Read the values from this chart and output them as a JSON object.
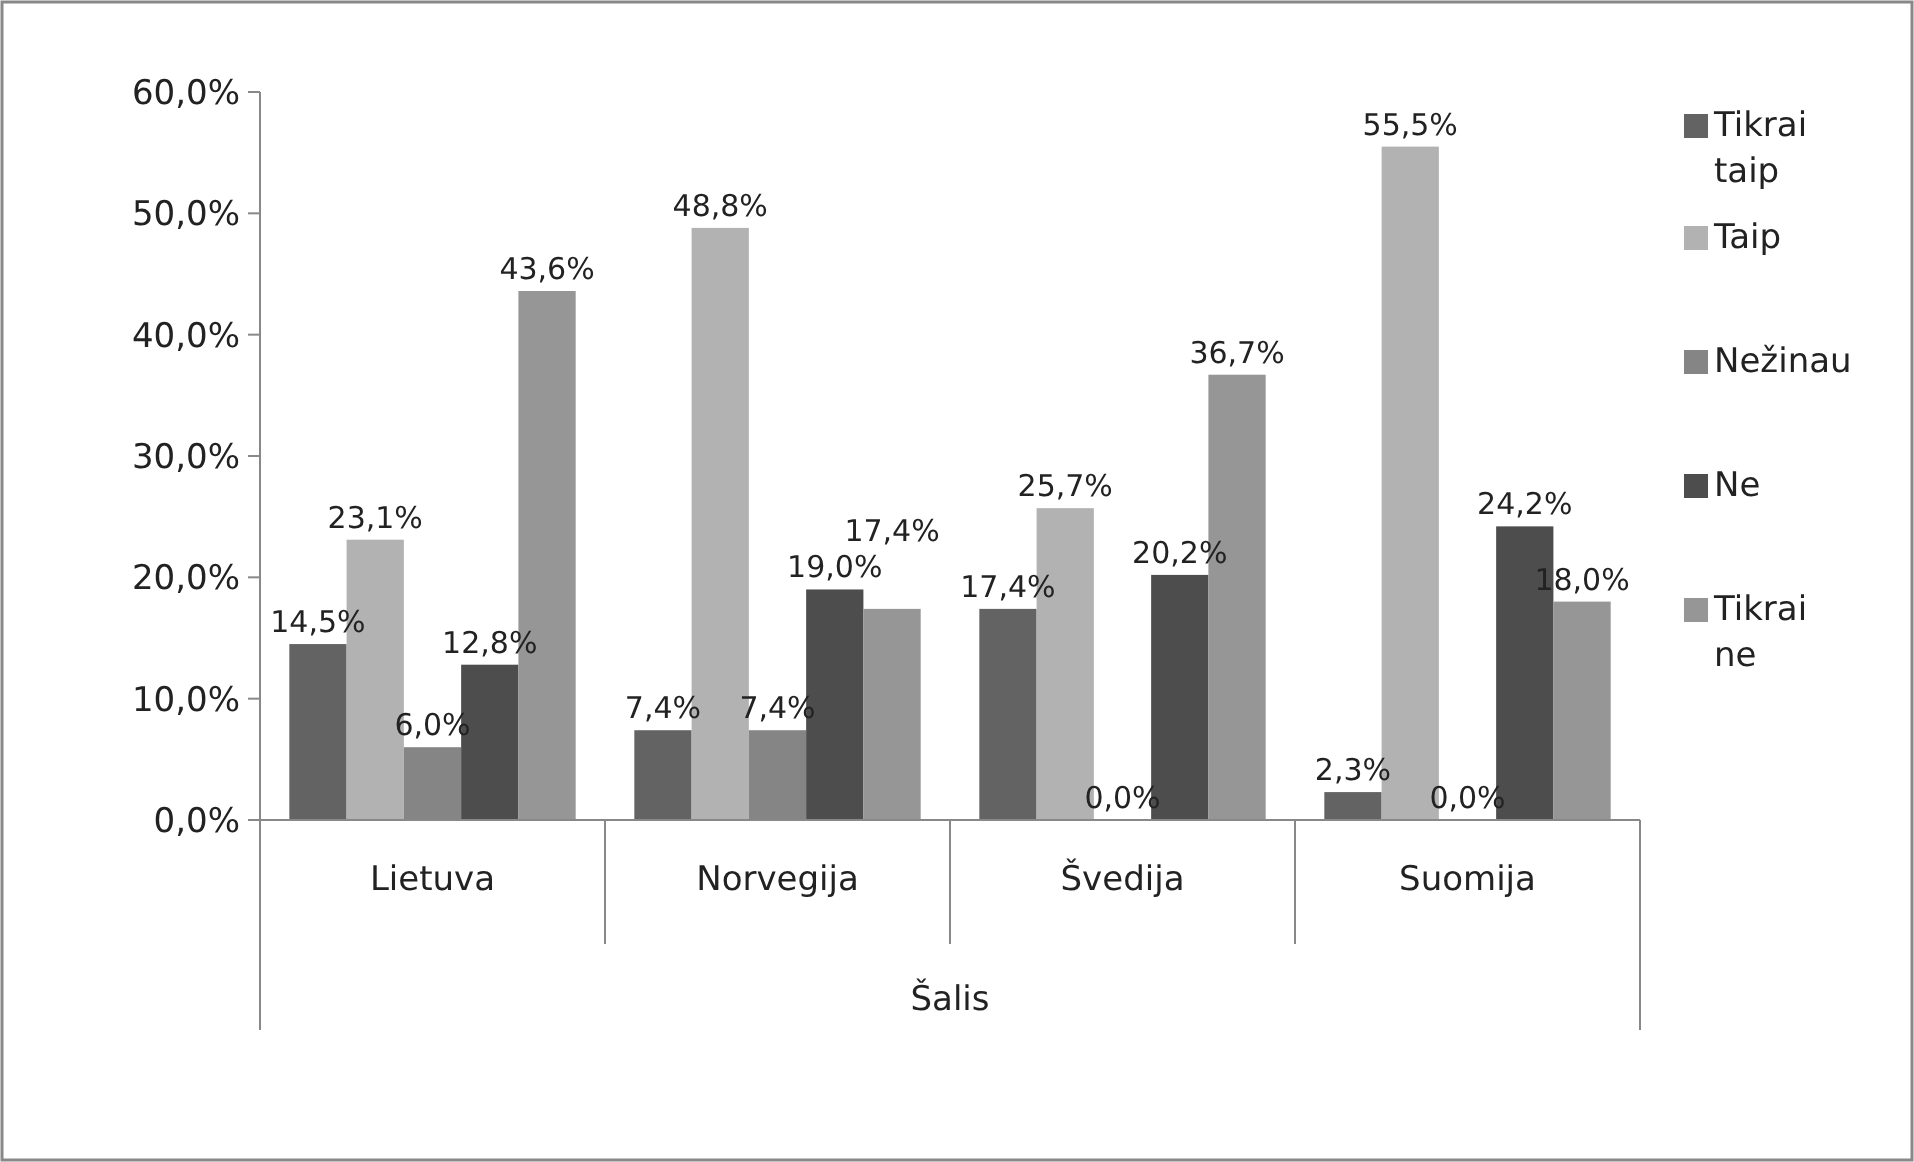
{
  "chart_data": {
    "type": "bar",
    "xlabel": "Šalis",
    "categories": [
      "Lietuva",
      "Norvegija",
      "Švedija",
      "Suomija"
    ],
    "series": [
      {
        "name": "Tikrai taip",
        "color": "#636363",
        "values": [
          14.5,
          7.4,
          17.4,
          2.3
        ],
        "value_labels": [
          "14,5%",
          "7,4%",
          "17,4%",
          "2,3%"
        ]
      },
      {
        "name": "Taip",
        "color": "#b2b2b2",
        "values": [
          23.1,
          48.8,
          25.7,
          55.5
        ],
        "value_labels": [
          "23,1%",
          "48,8%",
          "25,7%",
          "55,5%"
        ]
      },
      {
        "name": "Nežinau",
        "color": "#858585",
        "values": [
          6.0,
          7.4,
          0.0,
          0.0
        ],
        "value_labels": [
          "6,0%",
          "7,4%",
          "0,0%",
          "0,0%"
        ]
      },
      {
        "name": "Ne",
        "color": "#4d4d4d",
        "values": [
          12.8,
          19.0,
          20.2,
          24.2
        ],
        "value_labels": [
          "12,8%",
          "19,0%",
          "20,2%",
          "24,2%"
        ]
      },
      {
        "name": "Tikrai ne",
        "color": "#969696",
        "values": [
          43.6,
          17.4,
          36.7,
          18.0
        ],
        "value_labels": [
          "43,6%",
          "17,4%",
          "36,7%",
          "18,0%"
        ]
      }
    ],
    "ylim": [
      0,
      60
    ],
    "yticks": [
      {
        "value": 0,
        "label": "0,0%"
      },
      {
        "value": 10,
        "label": "10,0%"
      },
      {
        "value": 20,
        "label": "20,0%"
      },
      {
        "value": 30,
        "label": "30,0%"
      },
      {
        "value": 40,
        "label": "40,0%"
      },
      {
        "value": 50,
        "label": "50,0%"
      },
      {
        "value": 60,
        "label": "60,0%"
      }
    ],
    "grid": false,
    "legend": "right"
  }
}
